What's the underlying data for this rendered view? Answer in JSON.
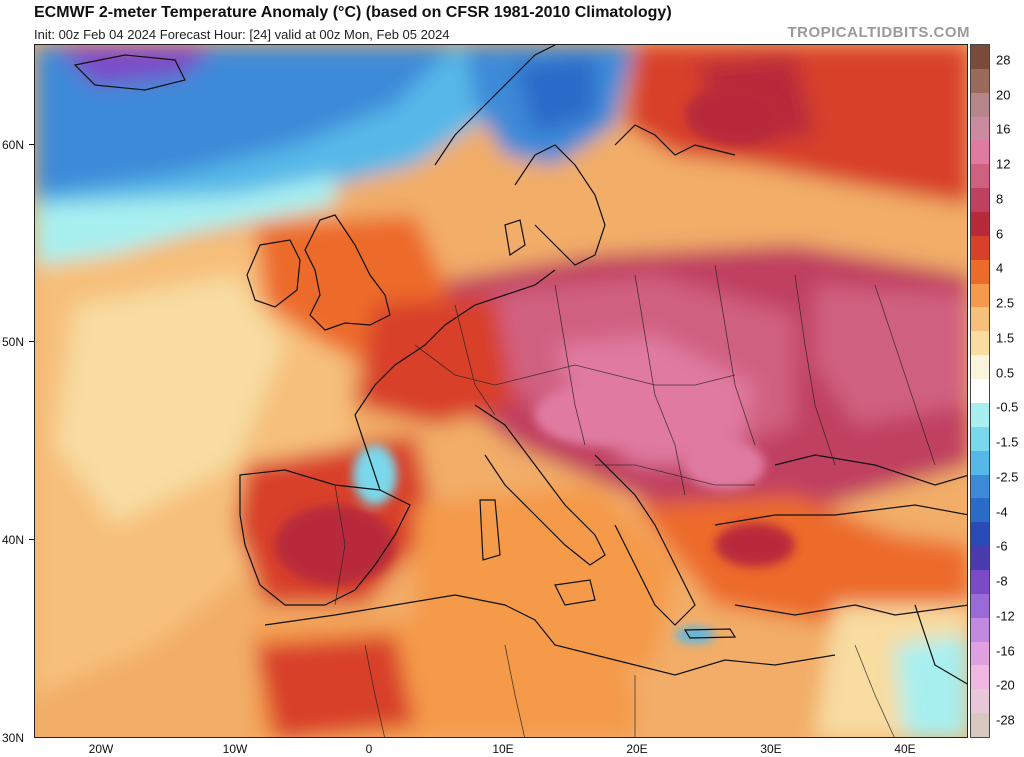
{
  "header": {
    "title": "ECMWF 2-meter Temperature Anomaly (°C) (based on CFSR 1981-2010 Climatology)",
    "subtitle": "Init: 00z Feb 04 2024   Forecast Hour: [24]   valid at 00z Mon, Feb 05 2024",
    "credit": "TROPICALTIDBITS.COM"
  },
  "map": {
    "lat_labels": [
      "60N",
      "50N",
      "40N",
      "30N"
    ],
    "lon_labels": [
      "20W",
      "10W",
      "0",
      "10E",
      "20E",
      "30E",
      "40E"
    ]
  },
  "colorbar": {
    "labels": [
      "28",
      "20",
      "16",
      "12",
      "8",
      "6",
      "4",
      "2.5",
      "1.5",
      "0.5",
      "-0.5",
      "-1.5",
      "-2.5",
      "-4",
      "-6",
      "-8",
      "-12",
      "-16",
      "-20",
      "-28"
    ],
    "colors": [
      "#7a4a3a",
      "#9a6a5a",
      "#b5858a",
      "#cc8aa0",
      "#e07aa0",
      "#d06080",
      "#c04060",
      "#b82a3a",
      "#d8402a",
      "#ec6a2a",
      "#f49a4a",
      "#f6c07a",
      "#f8dca0",
      "#fbf4dc",
      "#ffffff",
      "#a8f0f0",
      "#7ad8ec",
      "#56b8e8",
      "#3c8ad8",
      "#2a6ac8",
      "#2a4ab8",
      "#4a3ab0",
      "#7a4ac8",
      "#9a6ad8",
      "#c08ae0",
      "#e0a0e0",
      "#f0b8e0",
      "#e8c8d8",
      "#d8c8c0"
    ],
    "unit": "°C"
  }
}
